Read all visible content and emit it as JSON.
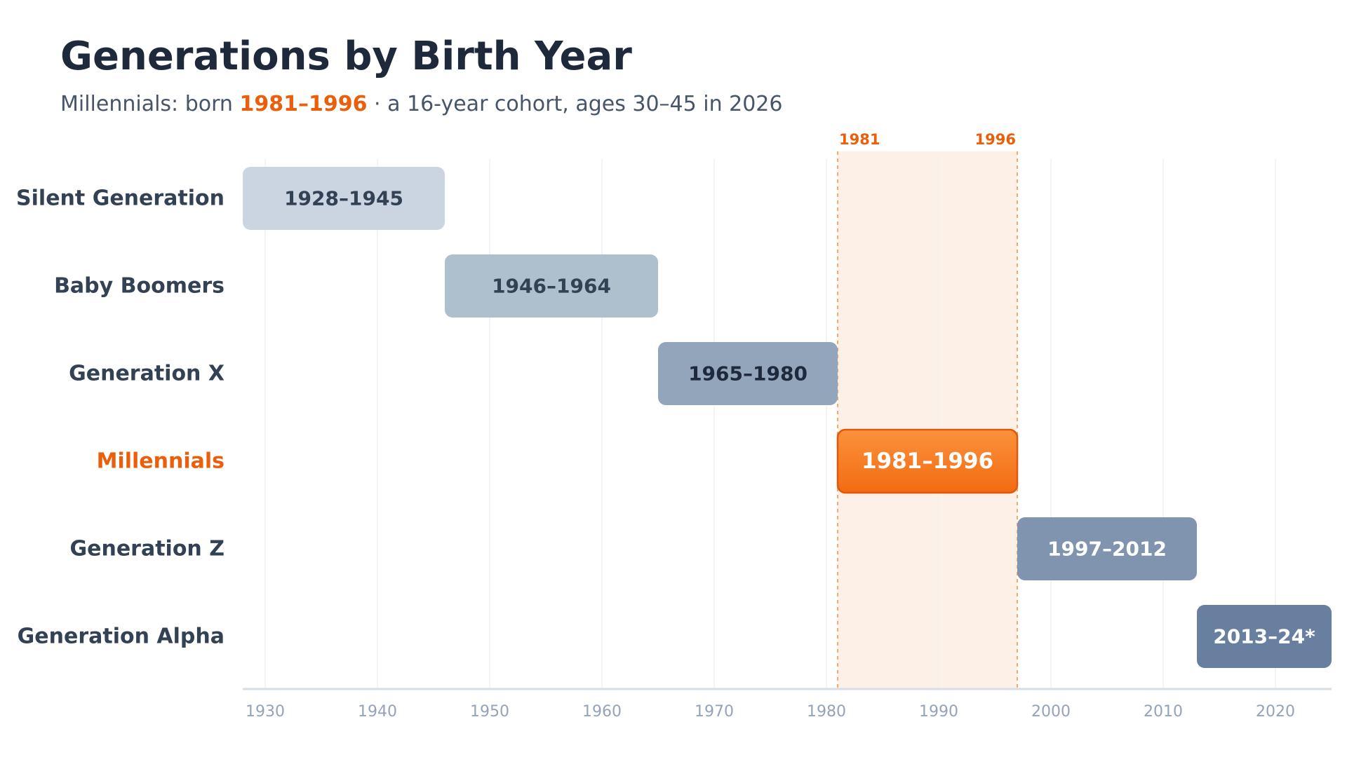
{
  "chart_data": {
    "type": "bar",
    "orientation": "horizontal-range",
    "title": "Generations by Birth Year",
    "subtitle": {
      "prefix": "Millennials: born ",
      "highlight": "1981–1996",
      "suffix": " · a 16-year cohort, ages 30–45 in 2026"
    },
    "xlim": [
      1928,
      2025
    ],
    "x_ticks": [
      1930,
      1940,
      1950,
      1960,
      1970,
      1980,
      1990,
      2000,
      2010,
      2020
    ],
    "grid": true,
    "highlight_band": {
      "start": 1981,
      "end": 1997,
      "start_label": "1981",
      "end_label": "1996"
    },
    "series": [
      {
        "name": "Silent Generation",
        "start": 1928,
        "end": 1946,
        "label": "1928–1945",
        "color": "#cbd5e1",
        "text_color": "#334155",
        "highlight": false
      },
      {
        "name": "Baby Boomers",
        "start": 1946,
        "end": 1965,
        "label": "1946–1964",
        "color": "#aebfce",
        "text_color": "#334155",
        "highlight": false
      },
      {
        "name": "Generation X",
        "start": 1965,
        "end": 1981,
        "label": "1965–1980",
        "color": "#93a5ba",
        "text_color": "#1e293b",
        "highlight": false
      },
      {
        "name": "Millennials",
        "start": 1981,
        "end": 1997,
        "label": "1981–1996",
        "color": "#f97316",
        "text_color": "#ffffff",
        "highlight": true
      },
      {
        "name": "Generation Z",
        "start": 1997,
        "end": 2013,
        "label": "1997–2012",
        "color": "#8094b0",
        "text_color": "#ffffff",
        "highlight": false
      },
      {
        "name": "Generation Alpha",
        "start": 2013,
        "end": 2025,
        "label": "2013–24*",
        "color": "#687fa0",
        "text_color": "#ffffff",
        "highlight": false
      }
    ],
    "colors": {
      "accent": "#ea5f0c",
      "title": "#1e293b",
      "label": "#334155",
      "tick": "#94a3b8",
      "grid": "#eef1f4",
      "axis": "#d7dde4",
      "band": "#fdf1e7"
    }
  }
}
